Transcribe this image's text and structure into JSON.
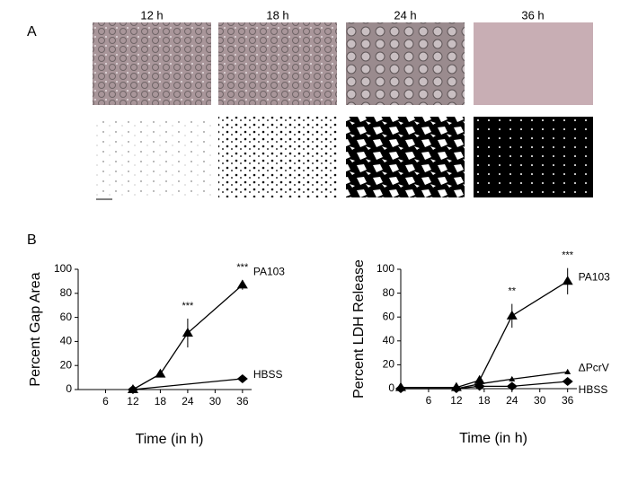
{
  "figure": {
    "panel_labels": [
      "A",
      "B"
    ],
    "image_labels": [
      "12 h",
      "18 h",
      "24 h",
      "36 h"
    ]
  },
  "chart_data": [
    {
      "type": "line",
      "ylabel": "Percent Gap Area",
      "xlabel": "Time (in h)",
      "xlim": [
        0,
        38
      ],
      "xticks": [
        6,
        12,
        18,
        24,
        30,
        36
      ],
      "ylim": [
        0,
        100
      ],
      "yticks": [
        0,
        20,
        40,
        60,
        80,
        100
      ],
      "series": [
        {
          "name": "PA103",
          "color": "#000000",
          "marker": "triangle",
          "x": [
            12,
            18,
            24,
            36
          ],
          "values": [
            0,
            13,
            47,
            87
          ],
          "errors": [
            0,
            1,
            12,
            4
          ]
        },
        {
          "name": "HBSS",
          "color": "#000000",
          "marker": "diamond",
          "x": [
            12,
            36
          ],
          "values": [
            0,
            9
          ],
          "errors": [
            0,
            1
          ]
        }
      ],
      "annotations": [
        "***",
        "***"
      ]
    },
    {
      "type": "line",
      "ylabel": "Percent LDH Release",
      "xlabel": "Time (in h)",
      "xlim": [
        0,
        38
      ],
      "xticks": [
        6,
        12,
        18,
        24,
        30,
        36
      ],
      "ylim": [
        0,
        100
      ],
      "yticks": [
        0,
        20,
        40,
        60,
        80,
        100
      ],
      "series": [
        {
          "name": "PA103",
          "color": "#000000",
          "marker": "triangle",
          "x": [
            0,
            12,
            17,
            24,
            36
          ],
          "values": [
            1,
            1,
            7,
            61,
            90
          ],
          "errors": [
            2,
            2,
            3,
            10,
            11
          ]
        },
        {
          "name": "ΔPcrV",
          "color": "#000000",
          "marker": "small-triangle",
          "x": [
            0,
            12,
            17,
            24,
            36
          ],
          "values": [
            0,
            0,
            4,
            8,
            14
          ],
          "errors": [
            1,
            1,
            1,
            1,
            2
          ]
        },
        {
          "name": "HBSS",
          "color": "#000000",
          "marker": "diamond",
          "x": [
            0,
            12,
            17,
            24,
            36
          ],
          "values": [
            0,
            0,
            2,
            2,
            6
          ],
          "errors": [
            1,
            1,
            1,
            1,
            1
          ]
        }
      ],
      "annotations": [
        "**",
        "***"
      ]
    }
  ]
}
